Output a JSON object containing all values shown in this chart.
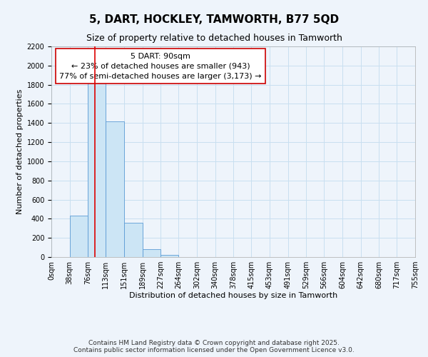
{
  "title": "5, DART, HOCKLEY, TAMWORTH, B77 5QD",
  "subtitle": "Size of property relative to detached houses in Tamworth",
  "xlabel": "Distribution of detached houses by size in Tamworth",
  "ylabel": "Number of detached properties",
  "bin_edges": [
    0,
    38,
    76,
    113,
    151,
    189,
    227,
    264,
    302,
    340,
    378,
    415,
    453,
    491,
    529,
    566,
    604,
    642,
    680,
    717,
    755
  ],
  "bin_counts": [
    0,
    430,
    1840,
    1420,
    360,
    80,
    25,
    0,
    0,
    0,
    0,
    0,
    0,
    0,
    0,
    0,
    0,
    0,
    0,
    0
  ],
  "bar_color": "#cce5f5",
  "bar_edge_color": "#5b9bd5",
  "grid_color": "#c8dff0",
  "red_line_x": 90,
  "annotation_title": "5 DART: 90sqm",
  "annotation_line1": "← 23% of detached houses are smaller (943)",
  "annotation_line2": "77% of semi-detached houses are larger (3,173) →",
  "annotation_box_color": "#ffffff",
  "annotation_box_edge": "#cc0000",
  "red_line_color": "#dd0000",
  "ylim": [
    0,
    2200
  ],
  "yticks": [
    0,
    200,
    400,
    600,
    800,
    1000,
    1200,
    1400,
    1600,
    1800,
    2000,
    2200
  ],
  "xtick_labels": [
    "0sqm",
    "38sqm",
    "76sqm",
    "113sqm",
    "151sqm",
    "189sqm",
    "227sqm",
    "264sqm",
    "302sqm",
    "340sqm",
    "378sqm",
    "415sqm",
    "453sqm",
    "491sqm",
    "529sqm",
    "566sqm",
    "604sqm",
    "642sqm",
    "680sqm",
    "717sqm",
    "755sqm"
  ],
  "footer1": "Contains HM Land Registry data © Crown copyright and database right 2025.",
  "footer2": "Contains public sector information licensed under the Open Government Licence v3.0.",
  "bg_color": "#eef4fb",
  "title_fontsize": 11,
  "subtitle_fontsize": 9,
  "annotation_fontsize": 8,
  "axis_fontsize": 8,
  "tick_fontsize": 7,
  "footer_fontsize": 6.5
}
